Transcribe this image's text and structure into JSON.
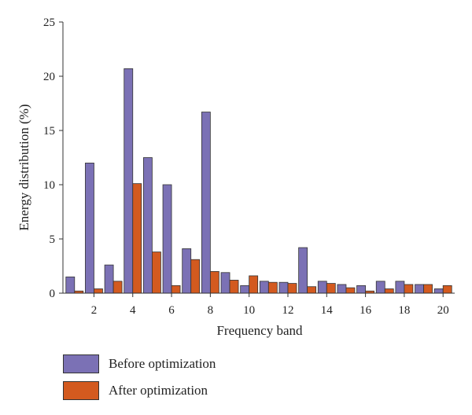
{
  "chart_data": {
    "type": "bar",
    "xlabel": "Frequency band",
    "ylabel": "Energy distribution (%)",
    "ylim": [
      0,
      25
    ],
    "yticks": [
      0,
      5,
      10,
      15,
      20,
      25
    ],
    "xticks": [
      2,
      4,
      6,
      8,
      10,
      12,
      14,
      16,
      18,
      20
    ],
    "categories": [
      1,
      2,
      3,
      4,
      5,
      6,
      7,
      8,
      9,
      10,
      11,
      12,
      13,
      14,
      15,
      16,
      17,
      18,
      19,
      20
    ],
    "series": [
      {
        "name": "Before optimization",
        "color": "#7b71b5",
        "values": [
          1.5,
          12.0,
          2.6,
          20.7,
          12.5,
          10.0,
          4.1,
          16.7,
          1.9,
          0.7,
          1.1,
          1.0,
          4.2,
          1.1,
          0.8,
          0.7,
          1.1,
          1.1,
          0.8,
          0.4
        ]
      },
      {
        "name": "After optimization",
        "color": "#d35a1f",
        "values": [
          0.2,
          0.4,
          1.1,
          10.1,
          3.8,
          0.7,
          3.1,
          2.0,
          1.2,
          1.6,
          1.0,
          0.9,
          0.6,
          0.9,
          0.5,
          0.2,
          0.4,
          0.8,
          0.8,
          0.7
        ]
      }
    ],
    "legend_position": "bottom-left"
  }
}
